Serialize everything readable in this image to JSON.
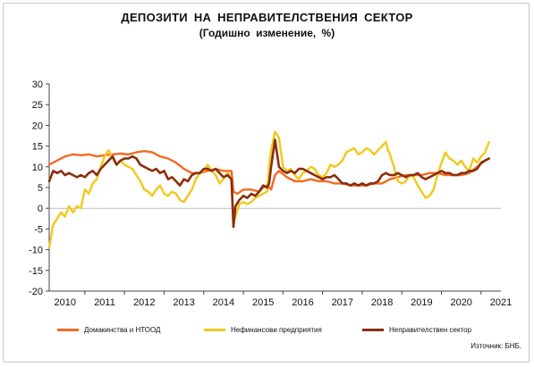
{
  "title": "ДЕПОЗИТИ НА НЕПРАВИТЕЛСТВЕНИЯ СЕКТОР",
  "subtitle": "(Годишно изменение, %)",
  "source": "Източник: БНБ.",
  "chart_data": {
    "type": "line",
    "title": "ДЕПОЗИТИ НА НЕПРАВИТЕЛСТВЕНИЯ СЕКТОР",
    "subtitle": "(Годишно изменение, %)",
    "ylim": [
      -20,
      30
    ],
    "yticks": [
      "30",
      "25",
      "20",
      "15",
      "10",
      "5",
      "0",
      "-5",
      "-10",
      "-15",
      "-20"
    ],
    "xlim": [
      2009.6,
      2021.0
    ],
    "xticks": [
      "2010",
      "2011",
      "2012",
      "2013",
      "2014",
      "2015",
      "2016",
      "2017",
      "2018",
      "2019",
      "2020",
      "2021"
    ],
    "grid": false,
    "legend_position": "bottom",
    "series": [
      {
        "name": "Домакинства и НТООД",
        "color": "#f26a21",
        "points": [
          [
            2009.6,
            10.5
          ],
          [
            2009.8,
            11.5
          ],
          [
            2010.0,
            12.5
          ],
          [
            2010.2,
            13.0
          ],
          [
            2010.4,
            12.8
          ],
          [
            2010.6,
            13.0
          ],
          [
            2010.8,
            12.5
          ],
          [
            2011.0,
            12.8
          ],
          [
            2011.2,
            13.0
          ],
          [
            2011.4,
            13.2
          ],
          [
            2011.6,
            13.0
          ],
          [
            2011.8,
            13.5
          ],
          [
            2012.0,
            13.8
          ],
          [
            2012.2,
            13.5
          ],
          [
            2012.4,
            12.5
          ],
          [
            2012.6,
            12.0
          ],
          [
            2012.8,
            11.0
          ],
          [
            2013.0,
            9.5
          ],
          [
            2013.2,
            8.5
          ],
          [
            2013.4,
            8.5
          ],
          [
            2013.6,
            9.0
          ],
          [
            2013.8,
            9.5
          ],
          [
            2014.0,
            9.0
          ],
          [
            2014.2,
            9.0
          ],
          [
            2014.25,
            4.0
          ],
          [
            2014.35,
            3.5
          ],
          [
            2014.5,
            4.5
          ],
          [
            2014.7,
            4.5
          ],
          [
            2014.9,
            4.0
          ],
          [
            2015.0,
            5.0
          ],
          [
            2015.1,
            5.5
          ],
          [
            2015.2,
            4.5
          ],
          [
            2015.3,
            8.0
          ],
          [
            2015.4,
            9.0
          ],
          [
            2015.6,
            7.5
          ],
          [
            2015.8,
            6.5
          ],
          [
            2016.0,
            6.5
          ],
          [
            2016.2,
            7.0
          ],
          [
            2016.4,
            6.5
          ],
          [
            2016.6,
            6.5
          ],
          [
            2016.8,
            6.0
          ],
          [
            2017.0,
            6.0
          ],
          [
            2017.2,
            5.5
          ],
          [
            2017.4,
            5.5
          ],
          [
            2017.6,
            5.5
          ],
          [
            2017.8,
            6.0
          ],
          [
            2018.0,
            6.0
          ],
          [
            2018.2,
            7.0
          ],
          [
            2018.4,
            7.5
          ],
          [
            2018.6,
            8.0
          ],
          [
            2018.8,
            8.0
          ],
          [
            2019.0,
            8.0
          ],
          [
            2019.2,
            8.5
          ],
          [
            2019.4,
            8.5
          ],
          [
            2019.6,
            8.0
          ],
          [
            2019.8,
            8.0
          ],
          [
            2020.0,
            8.0
          ],
          [
            2020.2,
            8.5
          ],
          [
            2020.4,
            10.0
          ],
          [
            2020.6,
            11.5
          ],
          [
            2020.7,
            12.0
          ]
        ]
      },
      {
        "name": "Нефинансови предприятия",
        "color": "#f2c81b",
        "points": [
          [
            2009.6,
            -9.5
          ],
          [
            2009.7,
            -4.0
          ],
          [
            2009.8,
            -2.5
          ],
          [
            2009.9,
            -1.0
          ],
          [
            2010.0,
            -2.0
          ],
          [
            2010.1,
            0.5
          ],
          [
            2010.2,
            -1.0
          ],
          [
            2010.3,
            0.5
          ],
          [
            2010.4,
            0.0
          ],
          [
            2010.5,
            4.5
          ],
          [
            2010.6,
            3.5
          ],
          [
            2010.7,
            6.0
          ],
          [
            2010.8,
            7.0
          ],
          [
            2010.9,
            10.0
          ],
          [
            2011.0,
            12.5
          ],
          [
            2011.1,
            14.0
          ],
          [
            2011.2,
            12.0
          ],
          [
            2011.3,
            10.5
          ],
          [
            2011.4,
            11.5
          ],
          [
            2011.5,
            10.5
          ],
          [
            2011.6,
            10.0
          ],
          [
            2011.7,
            9.5
          ],
          [
            2011.8,
            8.0
          ],
          [
            2011.9,
            6.5
          ],
          [
            2012.0,
            4.5
          ],
          [
            2012.1,
            4.0
          ],
          [
            2012.2,
            3.0
          ],
          [
            2012.3,
            4.5
          ],
          [
            2012.4,
            5.5
          ],
          [
            2012.5,
            3.5
          ],
          [
            2012.6,
            3.0
          ],
          [
            2012.7,
            4.0
          ],
          [
            2012.8,
            3.5
          ],
          [
            2012.9,
            2.0
          ],
          [
            2013.0,
            1.5
          ],
          [
            2013.1,
            3.0
          ],
          [
            2013.2,
            4.5
          ],
          [
            2013.3,
            7.0
          ],
          [
            2013.4,
            8.5
          ],
          [
            2013.5,
            9.0
          ],
          [
            2013.6,
            10.5
          ],
          [
            2013.7,
            9.0
          ],
          [
            2013.8,
            8.0
          ],
          [
            2013.9,
            6.0
          ],
          [
            2014.0,
            7.0
          ],
          [
            2014.1,
            8.5
          ],
          [
            2014.15,
            8.0
          ],
          [
            2014.2,
            6.5
          ],
          [
            2014.25,
            -3.5
          ],
          [
            2014.3,
            -2.0
          ],
          [
            2014.4,
            1.0
          ],
          [
            2014.5,
            1.5
          ],
          [
            2014.6,
            1.0
          ],
          [
            2014.7,
            1.5
          ],
          [
            2014.8,
            2.5
          ],
          [
            2014.9,
            3.0
          ],
          [
            2015.0,
            3.5
          ],
          [
            2015.1,
            4.0
          ],
          [
            2015.15,
            10.0
          ],
          [
            2015.2,
            14.0
          ],
          [
            2015.3,
            18.5
          ],
          [
            2015.4,
            17.0
          ],
          [
            2015.5,
            10.0
          ],
          [
            2015.6,
            9.0
          ],
          [
            2015.7,
            9.5
          ],
          [
            2015.8,
            8.0
          ],
          [
            2015.9,
            7.0
          ],
          [
            2016.0,
            8.5
          ],
          [
            2016.1,
            9.0
          ],
          [
            2016.2,
            10.0
          ],
          [
            2016.3,
            9.5
          ],
          [
            2016.4,
            8.0
          ],
          [
            2016.5,
            7.5
          ],
          [
            2016.6,
            8.5
          ],
          [
            2016.7,
            10.5
          ],
          [
            2016.8,
            10.0
          ],
          [
            2016.9,
            10.5
          ],
          [
            2017.0,
            11.5
          ],
          [
            2017.1,
            13.5
          ],
          [
            2017.2,
            14.0
          ],
          [
            2017.3,
            14.5
          ],
          [
            2017.4,
            13.0
          ],
          [
            2017.5,
            13.5
          ],
          [
            2017.6,
            14.5
          ],
          [
            2017.7,
            14.0
          ],
          [
            2017.8,
            13.0
          ],
          [
            2017.9,
            14.0
          ],
          [
            2018.0,
            15.0
          ],
          [
            2018.1,
            16.0
          ],
          [
            2018.15,
            14.0
          ],
          [
            2018.2,
            13.0
          ],
          [
            2018.3,
            10.0
          ],
          [
            2018.4,
            6.5
          ],
          [
            2018.5,
            6.0
          ],
          [
            2018.6,
            6.5
          ],
          [
            2018.7,
            8.0
          ],
          [
            2018.8,
            7.5
          ],
          [
            2018.9,
            5.5
          ],
          [
            2019.0,
            4.0
          ],
          [
            2019.1,
            2.5
          ],
          [
            2019.2,
            3.0
          ],
          [
            2019.3,
            4.5
          ],
          [
            2019.4,
            8.0
          ],
          [
            2019.5,
            11.0
          ],
          [
            2019.6,
            13.5
          ],
          [
            2019.7,
            12.0
          ],
          [
            2019.8,
            11.5
          ],
          [
            2019.9,
            10.5
          ],
          [
            2020.0,
            11.5
          ],
          [
            2020.1,
            10.0
          ],
          [
            2020.2,
            9.0
          ],
          [
            2020.3,
            12.0
          ],
          [
            2020.4,
            11.0
          ],
          [
            2020.5,
            12.5
          ],
          [
            2020.6,
            13.5
          ],
          [
            2020.7,
            16.0
          ]
        ]
      },
      {
        "name": "Неправителствен сектор",
        "color": "#8b2e0b",
        "points": [
          [
            2009.6,
            6.5
          ],
          [
            2009.7,
            9.0
          ],
          [
            2009.8,
            8.5
          ],
          [
            2009.9,
            9.0
          ],
          [
            2010.0,
            8.0
          ],
          [
            2010.1,
            8.5
          ],
          [
            2010.2,
            8.0
          ],
          [
            2010.3,
            7.5
          ],
          [
            2010.4,
            8.0
          ],
          [
            2010.5,
            7.5
          ],
          [
            2010.6,
            8.5
          ],
          [
            2010.7,
            9.0
          ],
          [
            2010.8,
            8.0
          ],
          [
            2010.9,
            9.5
          ],
          [
            2011.0,
            10.5
          ],
          [
            2011.1,
            11.5
          ],
          [
            2011.2,
            12.5
          ],
          [
            2011.3,
            10.5
          ],
          [
            2011.4,
            11.5
          ],
          [
            2011.5,
            12.0
          ],
          [
            2011.6,
            12.0
          ],
          [
            2011.7,
            12.5
          ],
          [
            2011.8,
            12.0
          ],
          [
            2011.9,
            10.5
          ],
          [
            2012.0,
            10.0
          ],
          [
            2012.1,
            9.5
          ],
          [
            2012.2,
            9.0
          ],
          [
            2012.3,
            9.5
          ],
          [
            2012.4,
            8.5
          ],
          [
            2012.5,
            9.0
          ],
          [
            2012.6,
            7.0
          ],
          [
            2012.7,
            7.5
          ],
          [
            2012.8,
            6.5
          ],
          [
            2012.9,
            5.5
          ],
          [
            2013.0,
            7.0
          ],
          [
            2013.1,
            6.5
          ],
          [
            2013.2,
            8.0
          ],
          [
            2013.3,
            8.5
          ],
          [
            2013.4,
            8.5
          ],
          [
            2013.5,
            9.5
          ],
          [
            2013.6,
            9.5
          ],
          [
            2013.7,
            9.0
          ],
          [
            2013.8,
            9.5
          ],
          [
            2013.9,
            8.5
          ],
          [
            2014.0,
            7.5
          ],
          [
            2014.1,
            8.0
          ],
          [
            2014.2,
            7.0
          ],
          [
            2014.25,
            -4.5
          ],
          [
            2014.3,
            0.5
          ],
          [
            2014.4,
            2.0
          ],
          [
            2014.5,
            3.0
          ],
          [
            2014.6,
            2.5
          ],
          [
            2014.7,
            3.5
          ],
          [
            2014.8,
            3.0
          ],
          [
            2014.9,
            4.0
          ],
          [
            2015.0,
            5.5
          ],
          [
            2015.1,
            5.0
          ],
          [
            2015.15,
            6.0
          ],
          [
            2015.2,
            10.0
          ],
          [
            2015.3,
            16.5
          ],
          [
            2015.4,
            10.0
          ],
          [
            2015.5,
            9.0
          ],
          [
            2015.6,
            8.5
          ],
          [
            2015.7,
            9.0
          ],
          [
            2015.8,
            8.5
          ],
          [
            2015.9,
            9.5
          ],
          [
            2016.0,
            9.5
          ],
          [
            2016.1,
            9.0
          ],
          [
            2016.2,
            8.5
          ],
          [
            2016.3,
            8.0
          ],
          [
            2016.4,
            7.5
          ],
          [
            2016.5,
            7.0
          ],
          [
            2016.6,
            7.5
          ],
          [
            2016.7,
            7.5
          ],
          [
            2016.8,
            8.0
          ],
          [
            2016.9,
            7.0
          ],
          [
            2017.0,
            6.0
          ],
          [
            2017.1,
            6.0
          ],
          [
            2017.2,
            5.5
          ],
          [
            2017.3,
            6.0
          ],
          [
            2017.4,
            5.5
          ],
          [
            2017.5,
            6.0
          ],
          [
            2017.6,
            5.5
          ],
          [
            2017.7,
            6.0
          ],
          [
            2017.8,
            6.0
          ],
          [
            2017.9,
            6.5
          ],
          [
            2018.0,
            8.0
          ],
          [
            2018.1,
            8.5
          ],
          [
            2018.2,
            8.0
          ],
          [
            2018.3,
            8.0
          ],
          [
            2018.4,
            8.5
          ],
          [
            2018.5,
            8.0
          ],
          [
            2018.6,
            7.5
          ],
          [
            2018.7,
            8.0
          ],
          [
            2018.8,
            8.0
          ],
          [
            2018.9,
            8.5
          ],
          [
            2019.0,
            7.5
          ],
          [
            2019.1,
            7.0
          ],
          [
            2019.2,
            7.5
          ],
          [
            2019.3,
            8.0
          ],
          [
            2019.4,
            8.5
          ],
          [
            2019.5,
            9.0
          ],
          [
            2019.6,
            8.5
          ],
          [
            2019.7,
            8.5
          ],
          [
            2019.8,
            8.0
          ],
          [
            2019.9,
            8.0
          ],
          [
            2020.0,
            8.5
          ],
          [
            2020.1,
            8.5
          ],
          [
            2020.2,
            9.0
          ],
          [
            2020.3,
            9.0
          ],
          [
            2020.4,
            9.5
          ],
          [
            2020.5,
            11.0
          ],
          [
            2020.6,
            11.5
          ],
          [
            2020.7,
            12.0
          ]
        ]
      }
    ]
  }
}
